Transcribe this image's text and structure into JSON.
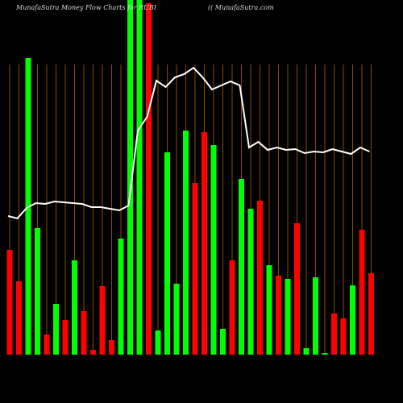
{
  "chart_data": {
    "type": "money-flow",
    "title": "MunafaSutra  Money Flow  Charts for RUBI",
    "subtitle": "(( MunafaSutra.com",
    "ylim": [
      0,
      440
    ],
    "bars": {
      "values": [
        130,
        91,
        368,
        157,
        25,
        63,
        43,
        117,
        54,
        6,
        85,
        18,
        144,
        440,
        440,
        436,
        30,
        251,
        88,
        278,
        213,
        276,
        260,
        32,
        117,
        218,
        181,
        191,
        111,
        98,
        94,
        163,
        8,
        96,
        2,
        51,
        45,
        86,
        155,
        101
      ],
      "colors": [
        "#ff0000",
        "#ff0000",
        "#00ff00",
        "#00ff00",
        "#ff0000",
        "#00ff00",
        "#ff0000",
        "#00ff00",
        "#ff0000",
        "#ff0000",
        "#ff0000",
        "#ff0000",
        "#00ff00",
        "#00ff00",
        "#00ff00",
        "#ff0000",
        "#00ff00",
        "#00ff00",
        "#00ff00",
        "#00ff00",
        "#ff0000",
        "#ff0000",
        "#00ff00",
        "#00ff00",
        "#ff0000",
        "#00ff00",
        "#00ff00",
        "#ff0000",
        "#00ff00",
        "#ff0000",
        "#00ff00",
        "#ff0000",
        "#00ff00",
        "#00ff00",
        "#00ff00",
        "#ff0000",
        "#ff0000",
        "#00ff00",
        "#ff0000",
        "#ff0000"
      ]
    },
    "line": {
      "color": "#ffffff",
      "values": [
        172,
        169,
        182,
        188,
        187,
        190,
        189,
        188,
        187,
        183,
        183,
        181,
        179,
        185,
        278,
        295,
        340,
        332,
        344,
        348,
        356,
        344,
        329,
        334,
        339,
        334,
        257,
        264,
        254,
        257,
        254,
        255,
        250,
        252,
        251,
        255,
        252,
        249,
        257,
        252
      ]
    }
  }
}
